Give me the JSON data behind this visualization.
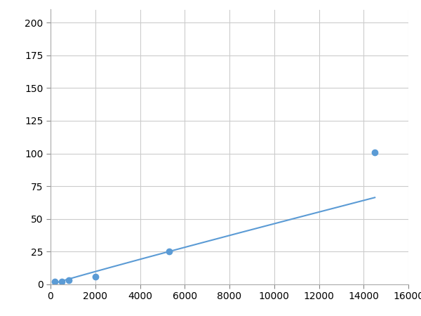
{
  "x": [
    200,
    500,
    800,
    2000,
    5300,
    14500
  ],
  "y": [
    2,
    2,
    3,
    6,
    25,
    101
  ],
  "line_color": "#5b9bd5",
  "marker_color": "#5b9bd5",
  "marker_size": 6,
  "marker_style": "o",
  "line_width": 1.5,
  "xlim": [
    0,
    16000
  ],
  "ylim": [
    0,
    210
  ],
  "xticks": [
    0,
    2000,
    4000,
    6000,
    8000,
    10000,
    12000,
    14000,
    16000
  ],
  "yticks": [
    0,
    25,
    50,
    75,
    100,
    125,
    150,
    175,
    200
  ],
  "grid_color": "#cccccc",
  "background_color": "#ffffff",
  "tick_label_fontsize": 10
}
